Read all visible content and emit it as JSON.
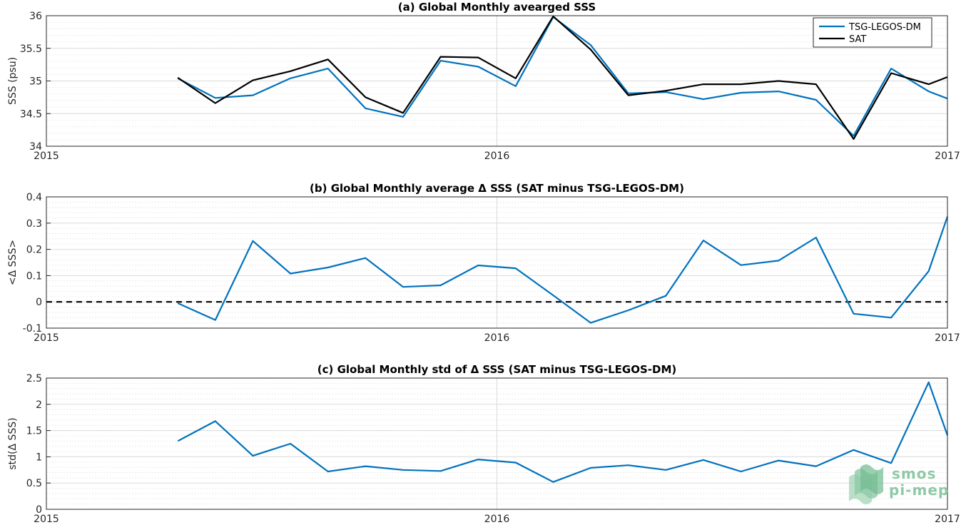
{
  "colors": {
    "tsg": "#0072BD",
    "sat": "#000000",
    "grid": "#d9d9d9",
    "zero": "#000000",
    "watermark": "#8ec9a6"
  },
  "watermark": {
    "icon": "smos-waves-icon",
    "line1": "smos",
    "line2": "pi-mep"
  },
  "chart_data": [
    {
      "type": "line",
      "title": "(a) Global Monthly avearged SSS",
      "ylabel": "SSS (psu)",
      "xlim": [
        2015.0,
        2017.0
      ],
      "xticks": [
        2015,
        2016,
        2017
      ],
      "ylim": [
        34,
        36
      ],
      "yticks": [
        "34",
        "34.5",
        "35",
        "35.5",
        "36"
      ],
      "legend": {
        "position": "top-right",
        "entries": [
          "TSG-LEGOS-DM",
          "SAT"
        ]
      },
      "grid": true,
      "series": [
        {
          "name": "TSG-LEGOS-DM",
          "color": "tsg",
          "x": [
            2015.2917,
            2015.375,
            2015.4583,
            2015.5417,
            2015.625,
            2015.7083,
            2015.7917,
            2015.875,
            2015.9583,
            2016.0417,
            2016.125,
            2016.2083,
            2016.2917,
            2016.375,
            2016.4583,
            2016.5417,
            2016.625,
            2016.7083,
            2016.7917,
            2016.875,
            2016.9583,
            2017.0
          ],
          "y": [
            35.04,
            34.74,
            34.78,
            35.04,
            35.19,
            34.58,
            34.45,
            35.31,
            35.22,
            34.92,
            35.98,
            35.55,
            34.81,
            34.83,
            34.72,
            34.82,
            34.84,
            34.71,
            34.16,
            35.19,
            34.84,
            34.73
          ]
        },
        {
          "name": "SAT",
          "color": "sat",
          "x": [
            2015.2917,
            2015.375,
            2015.4583,
            2015.5417,
            2015.625,
            2015.7083,
            2015.7917,
            2015.875,
            2015.9583,
            2016.0417,
            2016.125,
            2016.2083,
            2016.2917,
            2016.375,
            2016.4583,
            2016.5417,
            2016.625,
            2016.7083,
            2016.7917,
            2016.875,
            2016.9583,
            2017.0
          ],
          "y": [
            35.05,
            34.66,
            35.01,
            35.15,
            35.33,
            34.75,
            34.51,
            35.37,
            35.36,
            35.04,
            35.99,
            35.48,
            34.78,
            34.85,
            34.95,
            34.95,
            35.0,
            34.95,
            34.11,
            35.12,
            34.95,
            35.06
          ]
        }
      ]
    },
    {
      "type": "line",
      "title": "(b) Global Monthly average Δ SSS (SAT minus TSG-LEGOS-DM)",
      "ylabel": "<Δ SSS>",
      "xlim": [
        2015.0,
        2017.0
      ],
      "xticks": [
        2015,
        2016,
        2017
      ],
      "ylim": [
        -0.1,
        0.4
      ],
      "yticks": [
        "-0.1",
        "0",
        "0.1",
        "0.2",
        "0.3",
        "0.4"
      ],
      "grid": true,
      "reference_line": {
        "y": 0,
        "style": "dashed"
      },
      "series": [
        {
          "name": "",
          "color": "tsg",
          "x": [
            2015.2917,
            2015.375,
            2015.4583,
            2015.5417,
            2015.625,
            2015.7083,
            2015.7917,
            2015.875,
            2015.9583,
            2016.0417,
            2016.125,
            2016.2083,
            2016.2917,
            2016.375,
            2016.4583,
            2016.5417,
            2016.625,
            2016.7083,
            2016.7917,
            2016.875,
            2016.9583,
            2017.0
          ],
          "y": [
            -0.005,
            -0.069,
            0.232,
            0.108,
            0.131,
            0.167,
            0.057,
            0.063,
            0.139,
            0.128,
            0.025,
            -0.08,
            -0.032,
            0.023,
            0.234,
            0.14,
            0.157,
            0.245,
            -0.045,
            -0.06,
            0.117,
            0.325
          ]
        }
      ]
    },
    {
      "type": "line",
      "title": "(c) Global Monthly std of Δ SSS (SAT minus TSG-LEGOS-DM)",
      "ylabel": "std(Δ SSS)",
      "xlim": [
        2015.0,
        2017.0
      ],
      "xticks": [
        2015,
        2016,
        2017
      ],
      "ylim": [
        0,
        2.5
      ],
      "yticks": [
        "0",
        "0.5",
        "1",
        "1.5",
        "2",
        "2.5"
      ],
      "grid": true,
      "series": [
        {
          "name": "",
          "color": "tsg",
          "x": [
            2015.2917,
            2015.375,
            2015.4583,
            2015.5417,
            2015.625,
            2015.7083,
            2015.7917,
            2015.875,
            2015.9583,
            2016.0417,
            2016.125,
            2016.2083,
            2016.2917,
            2016.375,
            2016.4583,
            2016.5417,
            2016.625,
            2016.7083,
            2016.7917,
            2016.875,
            2016.9583,
            2017.0
          ],
          "y": [
            1.3,
            1.68,
            1.02,
            1.25,
            0.72,
            0.82,
            0.75,
            0.73,
            0.95,
            0.89,
            0.52,
            0.79,
            0.84,
            0.75,
            0.94,
            0.72,
            0.93,
            0.82,
            1.13,
            0.88,
            2.42,
            1.41
          ]
        }
      ]
    }
  ]
}
